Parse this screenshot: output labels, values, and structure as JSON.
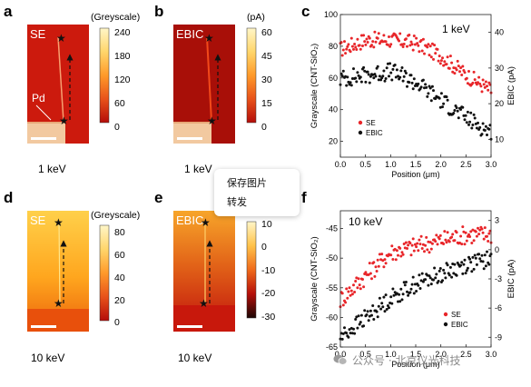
{
  "top_row": {
    "panel_a": {
      "letter": "a",
      "tag": "SE",
      "electrode_label": "Pd",
      "energy": "1 keV",
      "colorbar_title": "(Greyscale)",
      "colorbar_ticks": [
        "240",
        "180",
        "120",
        "60",
        "0"
      ]
    },
    "panel_b": {
      "letter": "b",
      "tag": "EBIC",
      "energy": "1 keV",
      "colorbar_title": "(pA)",
      "colorbar_ticks": [
        "60",
        "45",
        "30",
        "15",
        "0"
      ]
    }
  },
  "bottom_row": {
    "panel_d": {
      "letter": "d",
      "tag": "SE",
      "energy": "10 keV",
      "colorbar_title": "(Greyscale)",
      "colorbar_ticks": [
        "80",
        "60",
        "40",
        "20",
        "0"
      ]
    },
    "panel_e": {
      "letter": "e",
      "tag": "EBIC",
      "energy": "10 keV",
      "colorbar_title": "",
      "colorbar_ticks": [
        "10",
        "0",
        "-10",
        "-20",
        "-30"
      ]
    }
  },
  "colors": {
    "se": "#e8262a",
    "ebic": "#111111",
    "map_red": "#c8140c",
    "map_dark": "#9e0d08",
    "electrode": "#f2c9a0"
  },
  "chart_data": [
    {
      "panel": "c",
      "type": "scatter",
      "annotation": "1 keV",
      "xlabel": "Position (μm)",
      "ylabel_left": "Grayscale (CNT-SiO₂)",
      "ylabel_right": "EBIC (pA)",
      "xlim": [
        0.0,
        3.0
      ],
      "ylim_left": [
        10,
        100
      ],
      "ylim_right": [
        5,
        45
      ],
      "x_ticks": [
        "0.0",
        "0.5",
        "1.0",
        "1.5",
        "2.0",
        "2.5",
        "3.0"
      ],
      "y_ticks_left": [
        "20",
        "40",
        "60",
        "80",
        "100"
      ],
      "y_ticks_right": [
        "10",
        "20",
        "30",
        "40"
      ],
      "legend_placement": "bottom-left",
      "series": [
        {
          "name": "SE",
          "axis": "left",
          "color": "#e8262a",
          "trend": [
            [
              0.0,
              78
            ],
            [
              0.5,
              84
            ],
            [
              1.0,
              84
            ],
            [
              1.5,
              82
            ],
            [
              2.0,
              74
            ],
            [
              2.5,
              62
            ],
            [
              3.0,
              52
            ]
          ],
          "spread": 5
        },
        {
          "name": "EBIC",
          "axis": "right",
          "color": "#111111",
          "trend": [
            [
              0.0,
              27
            ],
            [
              0.5,
              28
            ],
            [
              1.0,
              29
            ],
            [
              1.5,
              26
            ],
            [
              2.0,
              21
            ],
            [
              2.5,
              16
            ],
            [
              3.0,
              12
            ]
          ],
          "spread": 2.5
        }
      ]
    },
    {
      "panel": "f",
      "type": "scatter",
      "annotation": "10 keV",
      "xlabel": "Position (μm)",
      "ylabel_left": "Grayscale (CNT-SiO₂)",
      "ylabel_right": "EBIC (pA)",
      "xlim": [
        0.0,
        3.0
      ],
      "ylim_left": [
        -65,
        -42
      ],
      "ylim_right": [
        -10,
        4
      ],
      "x_ticks": [
        "0.0",
        "0.5",
        "1.0",
        "1.5",
        "2.0",
        "2.5",
        "3.0"
      ],
      "y_ticks_left": [
        "-45",
        "-50",
        "-55",
        "-60",
        "-65"
      ],
      "y_ticks_right": [
        "3",
        "0",
        "-3",
        "-6",
        "-9"
      ],
      "legend_placement": "bottom-right",
      "series": [
        {
          "name": "SE",
          "axis": "left",
          "color": "#e8262a",
          "trend": [
            [
              0.0,
              -57
            ],
            [
              0.5,
              -53
            ],
            [
              1.0,
              -49
            ],
            [
              1.5,
              -48
            ],
            [
              2.0,
              -47
            ],
            [
              2.5,
              -46
            ],
            [
              3.0,
              -46
            ]
          ],
          "spread": 1.6
        },
        {
          "name": "EBIC",
          "axis": "right",
          "color": "#111111",
          "trend": [
            [
              0.0,
              -9
            ],
            [
              0.5,
              -7
            ],
            [
              1.0,
              -5
            ],
            [
              1.5,
              -3.5
            ],
            [
              2.0,
              -2.5
            ],
            [
              2.5,
              -1.5
            ],
            [
              3.0,
              -1
            ]
          ],
          "spread": 0.9
        }
      ]
    }
  ],
  "context_menu": {
    "items": [
      "保存图片",
      "转发"
    ]
  },
  "watermark": {
    "text": "公众号 · 北京仪光科技",
    "icon": "wechat-icon"
  }
}
